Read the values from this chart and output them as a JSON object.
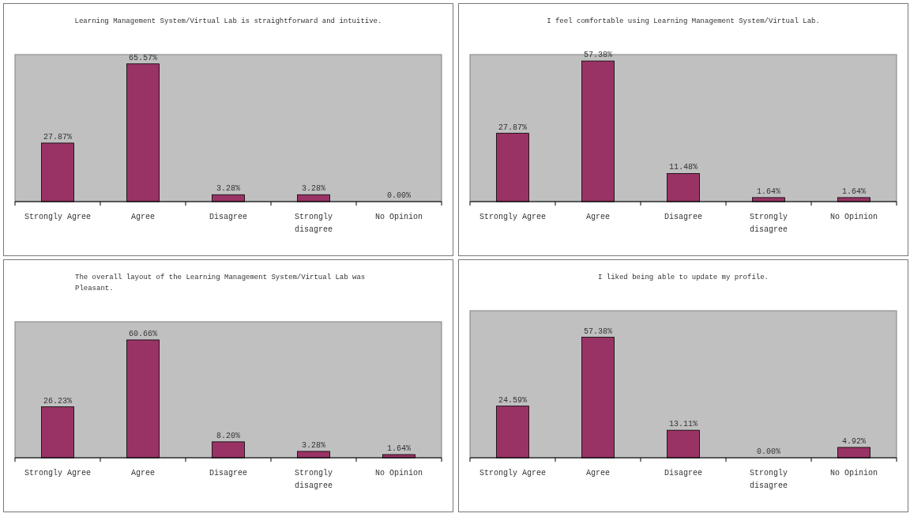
{
  "chart_data": [
    {
      "type": "bar",
      "title": "Learning Management System/Virtual Lab is straightforward and intuitive.",
      "categories": [
        "Strongly Agree",
        "Agree",
        "Disagree",
        "Strongly disagree",
        "No Opinion"
      ],
      "values": [
        27.87,
        65.57,
        3.28,
        3.28,
        0.0
      ],
      "value_labels": [
        "27.87%",
        "65.57%",
        "3.28%",
        "3.28%",
        "0.00%"
      ],
      "color": "#993366",
      "ylim": [
        0,
        70
      ],
      "tick_labels": "x"
    },
    {
      "type": "bar",
      "title": "I feel comfortable using Learning Management System/Virtual Lab.",
      "categories": [
        "Strongly Agree",
        "Agree",
        "Disagree",
        "Strongly disagree",
        "No Opinion"
      ],
      "values": [
        27.87,
        57.38,
        11.48,
        1.64,
        1.64
      ],
      "value_labels": [
        "27.87%",
        "57.38%",
        "11.48%",
        "1.64%",
        "1.64%"
      ],
      "color": "#993366",
      "ylim": [
        0,
        60
      ],
      "tick_labels": "x"
    },
    {
      "type": "bar",
      "title": "The overall layout of the Learning Management System/Virtual Lab was Pleasant.",
      "categories": [
        "Strongly Agree",
        "Agree",
        "Disagree",
        "Strongly disagree",
        "No Opinion"
      ],
      "values": [
        26.23,
        60.66,
        8.2,
        3.28,
        1.64
      ],
      "value_labels": [
        "26.23%",
        "60.66%",
        "8.20%",
        "3.28%",
        "1.64%"
      ],
      "color": "#993366",
      "ylim": [
        0,
        70
      ],
      "tick_labels": "x"
    },
    {
      "type": "bar",
      "title": "I liked being able to update my profile.",
      "categories": [
        "Strongly Agree",
        "Agree",
        "Disagree",
        "Strongly disagree",
        "No Opinion"
      ],
      "values": [
        24.59,
        57.38,
        13.11,
        0.0,
        4.92
      ],
      "value_labels": [
        "24.59%",
        "57.38%",
        "13.11%",
        "0.00%",
        "4.92%"
      ],
      "color": "#993366",
      "ylim": [
        0,
        70
      ],
      "tick_labels": "x"
    }
  ]
}
